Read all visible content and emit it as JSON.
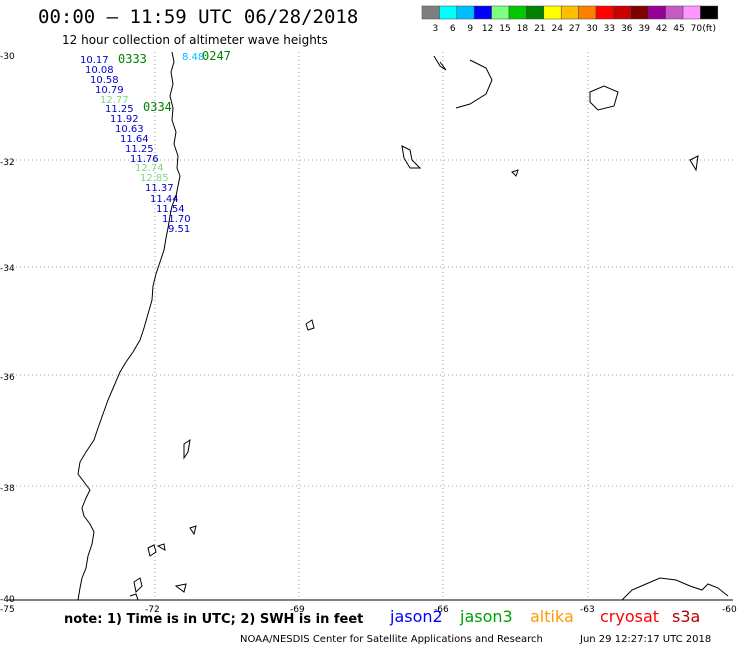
{
  "title": "00:00 – 11:59 UTC 06/28/2018",
  "subtitle": "12 hour collection of altimeter wave heights",
  "legend": {
    "colors": [
      "#7f7f7f",
      "#00ffff",
      "#00bfff",
      "#0000ff",
      "#7fff7f",
      "#00c800",
      "#008200",
      "#ffff00",
      "#ffbf00",
      "#ff8000",
      "#ff0000",
      "#c80000",
      "#800000",
      "#960096",
      "#c85ac8",
      "#ff96ff",
      "#000000"
    ],
    "labels": [
      "3",
      "6",
      "9",
      "12",
      "15",
      "18",
      "21",
      "24",
      "27",
      "30",
      "33",
      "36",
      "39",
      "42",
      "45",
      "70",
      "(ft)"
    ]
  },
  "axes": {
    "lat_labels": [
      "-30",
      "-32",
      "-34",
      "-36",
      "-38",
      "-40"
    ],
    "lon_labels": [
      "-75",
      "-72",
      "-69",
      "-66",
      "-63",
      "-60"
    ]
  },
  "passes": [
    {
      "label": "0333",
      "color": "#008200"
    },
    {
      "label": "0247",
      "color": "#008200"
    },
    {
      "label": "0334",
      "color": "#008200"
    }
  ],
  "measurements": [
    {
      "v": "10.17",
      "c": "#0000c8"
    },
    {
      "v": "10.08",
      "c": "#0000c8"
    },
    {
      "v": "10.58",
      "c": "#0000c8"
    },
    {
      "v": "10.79",
      "c": "#0000c8"
    },
    {
      "v": "12.77",
      "c": "#7fd87f"
    },
    {
      "v": "11.25",
      "c": "#0000c8"
    },
    {
      "v": "11.92",
      "c": "#0000c8"
    },
    {
      "v": "10.63",
      "c": "#0000c8"
    },
    {
      "v": "11.64",
      "c": "#0000c8"
    },
    {
      "v": "11.25",
      "c": "#0000c8"
    },
    {
      "v": "11.76",
      "c": "#0000c8"
    },
    {
      "v": "12.74",
      "c": "#7fd87f"
    },
    {
      "v": "12.85",
      "c": "#7fd87f"
    },
    {
      "v": "11.37",
      "c": "#0000c8"
    },
    {
      "v": "11.44",
      "c": "#0000c8"
    },
    {
      "v": "11.54",
      "c": "#0000c8"
    },
    {
      "v": "11.70",
      "c": "#0000c8"
    },
    {
      "v": "9.51",
      "c": "#0000c8"
    },
    {
      "v": "8.48",
      "c": "#00bfff"
    }
  ],
  "note": "note: 1) Time is in UTC; 2) SWH is in feet",
  "satellites": [
    {
      "name": "jason2",
      "color": "#0000ff"
    },
    {
      "name": "jason3",
      "color": "#00a000"
    },
    {
      "name": "altika",
      "color": "#ff9900"
    },
    {
      "name": "cryosat",
      "color": "#ff0000"
    },
    {
      "name": "s3a",
      "color": "#b40000"
    }
  ],
  "footer_left": "NOAA/NESDIS Center for Satellite Applications and Research",
  "footer_right": "Jun 29 12:27:17 UTC 2018"
}
